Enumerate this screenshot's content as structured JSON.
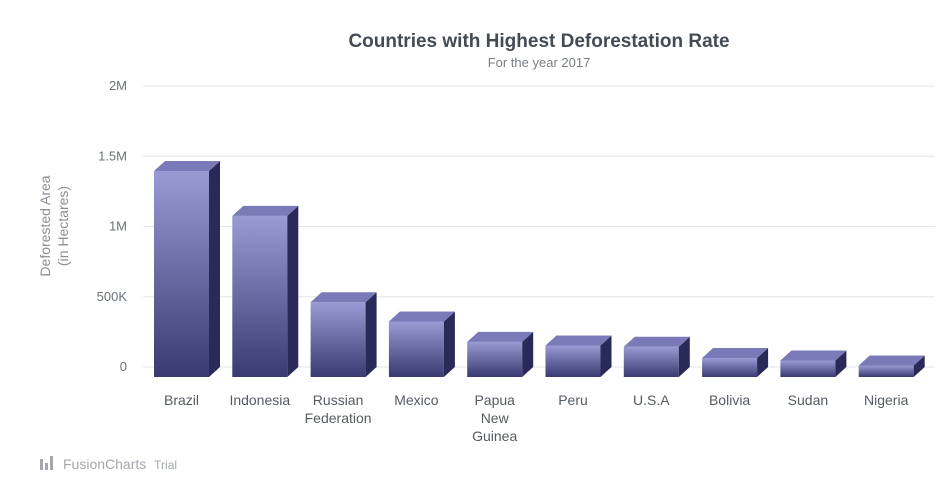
{
  "chart_data": {
    "type": "bar",
    "title": "Countries with Highest Deforestation Rate",
    "subtitle": "For the year 2017",
    "ylabel_lines": [
      "Deforested Area",
      "(in Hectares)"
    ],
    "xlabel": "",
    "ylim": [
      0,
      2000000
    ],
    "yticks": [
      {
        "value": 0,
        "label": "0"
      },
      {
        "value": 500000,
        "label": "500K"
      },
      {
        "value": 1000000,
        "label": "1M"
      },
      {
        "value": 1500000,
        "label": "1.5M"
      },
      {
        "value": 2000000,
        "label": "2M"
      }
    ],
    "categories": [
      [
        "Brazil"
      ],
      [
        "Indonesia"
      ],
      [
        "Russian",
        "Federation"
      ],
      [
        "Mexico"
      ],
      [
        "Papua",
        "New",
        "Guinea"
      ],
      [
        "Peru"
      ],
      [
        "U.S.A"
      ],
      [
        "Bolivia"
      ],
      [
        "Sudan"
      ],
      [
        "Nigeria"
      ]
    ],
    "values": [
      1466000,
      1147000,
      532200,
      395000,
      250200,
      224600,
      215200,
      135200,
      117807,
      82000
    ],
    "grid": true,
    "legend": "none",
    "colors": {
      "bar_top": "#9a9ad4",
      "bar_bottom": "#3a3a72",
      "bar_side": "#2a2a58",
      "bar_cap": "#7a7ab8"
    }
  },
  "watermark": {
    "brand": "FusionCharts",
    "suffix": "Trial",
    "icon": "fusioncharts-logo-icon"
  }
}
